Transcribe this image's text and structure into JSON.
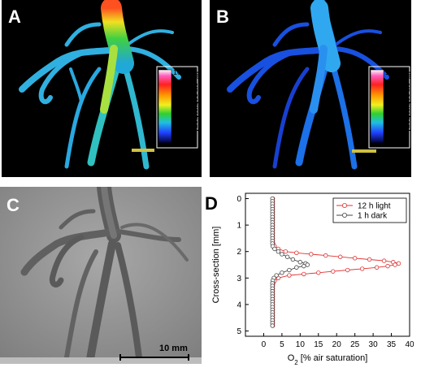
{
  "panels": {
    "a": {
      "label": "A",
      "colorbar": {
        "title": "[% air saturation]",
        "ticks": [
          "100",
          "75",
          "50",
          "25",
          "0"
        ]
      }
    },
    "b": {
      "label": "B",
      "colorbar": {
        "title": "[% air saturation]",
        "ticks": [
          "100",
          "75",
          "50",
          "25",
          "0"
        ]
      }
    },
    "c": {
      "label": "C",
      "scalebar_label": "10 mm"
    },
    "d": {
      "label": "D"
    }
  },
  "chart_data": {
    "type": "line",
    "xlabel_main": "O",
    "xlabel_sub": "2",
    "xlabel_rest": " [% air saturation]",
    "ylabel": "Cross-section [mm]",
    "xlim": [
      -5,
      40
    ],
    "ylim": [
      5.2,
      -0.2
    ],
    "y_inverted": true,
    "xticks": [
      0,
      5,
      10,
      15,
      20,
      25,
      30,
      35,
      40
    ],
    "yticks": [
      0,
      1,
      2,
      3,
      4,
      5
    ],
    "legend_position": "top-right",
    "series": [
      {
        "name": "12 h light",
        "color": "#e03030",
        "marker": "open-circle",
        "points": [
          [
            2.5,
            0.0
          ],
          [
            2.5,
            0.1
          ],
          [
            2.5,
            0.2
          ],
          [
            2.5,
            0.3
          ],
          [
            2.5,
            0.4
          ],
          [
            2.5,
            0.5
          ],
          [
            2.5,
            0.6
          ],
          [
            2.5,
            0.7
          ],
          [
            2.5,
            0.8
          ],
          [
            2.5,
            0.9
          ],
          [
            2.5,
            1.0
          ],
          [
            2.5,
            1.1
          ],
          [
            2.5,
            1.2
          ],
          [
            2.5,
            1.3
          ],
          [
            2.5,
            1.4
          ],
          [
            2.5,
            1.5
          ],
          [
            2.5,
            1.6
          ],
          [
            2.6,
            1.7
          ],
          [
            3,
            1.8
          ],
          [
            4,
            1.9
          ],
          [
            6,
            2.0
          ],
          [
            9,
            2.05
          ],
          [
            13,
            2.1
          ],
          [
            17,
            2.15
          ],
          [
            21,
            2.2
          ],
          [
            25,
            2.25
          ],
          [
            29,
            2.3
          ],
          [
            33,
            2.35
          ],
          [
            35.5,
            2.4
          ],
          [
            37,
            2.45
          ],
          [
            36,
            2.5
          ],
          [
            34,
            2.55
          ],
          [
            31,
            2.6
          ],
          [
            27,
            2.65
          ],
          [
            23,
            2.7
          ],
          [
            19,
            2.75
          ],
          [
            15,
            2.8
          ],
          [
            11,
            2.85
          ],
          [
            7,
            2.9
          ],
          [
            4,
            3.0
          ],
          [
            3,
            3.1
          ],
          [
            2.6,
            3.2
          ],
          [
            2.5,
            3.3
          ],
          [
            2.5,
            3.4
          ],
          [
            2.5,
            3.5
          ],
          [
            2.5,
            3.6
          ],
          [
            2.5,
            3.7
          ],
          [
            2.5,
            3.8
          ],
          [
            2.5,
            3.9
          ],
          [
            2.5,
            4.0
          ],
          [
            2.5,
            4.1
          ],
          [
            2.5,
            4.2
          ],
          [
            2.5,
            4.3
          ],
          [
            2.5,
            4.4
          ],
          [
            2.5,
            4.5
          ],
          [
            2.5,
            4.6
          ],
          [
            2.5,
            4.7
          ],
          [
            2.5,
            4.8
          ]
        ]
      },
      {
        "name": "1 h dark",
        "color": "#444444",
        "marker": "open-circle",
        "points": [
          [
            2.4,
            0.0
          ],
          [
            2.4,
            0.1
          ],
          [
            2.4,
            0.2
          ],
          [
            2.4,
            0.3
          ],
          [
            2.4,
            0.4
          ],
          [
            2.4,
            0.5
          ],
          [
            2.4,
            0.6
          ],
          [
            2.4,
            0.7
          ],
          [
            2.4,
            0.8
          ],
          [
            2.4,
            0.9
          ],
          [
            2.4,
            1.0
          ],
          [
            2.4,
            1.1
          ],
          [
            2.4,
            1.2
          ],
          [
            2.4,
            1.3
          ],
          [
            2.4,
            1.4
          ],
          [
            2.4,
            1.5
          ],
          [
            2.4,
            1.6
          ],
          [
            2.4,
            1.7
          ],
          [
            2.5,
            1.8
          ],
          [
            3,
            1.9
          ],
          [
            4,
            2.0
          ],
          [
            5,
            2.1
          ],
          [
            6.5,
            2.2
          ],
          [
            8,
            2.3
          ],
          [
            10,
            2.4
          ],
          [
            11.5,
            2.45
          ],
          [
            12,
            2.5
          ],
          [
            11,
            2.55
          ],
          [
            9,
            2.6
          ],
          [
            7,
            2.7
          ],
          [
            5,
            2.8
          ],
          [
            3.5,
            2.9
          ],
          [
            2.8,
            3.0
          ],
          [
            2.5,
            3.1
          ],
          [
            2.4,
            3.2
          ],
          [
            2.4,
            3.3
          ],
          [
            2.4,
            3.4
          ],
          [
            2.4,
            3.5
          ],
          [
            2.4,
            3.6
          ],
          [
            2.4,
            3.7
          ],
          [
            2.4,
            3.8
          ],
          [
            2.4,
            3.9
          ],
          [
            2.4,
            4.0
          ],
          [
            2.4,
            4.1
          ],
          [
            2.4,
            4.2
          ],
          [
            2.4,
            4.3
          ],
          [
            2.4,
            4.4
          ],
          [
            2.4,
            4.5
          ],
          [
            2.4,
            4.6
          ],
          [
            2.4,
            4.7
          ],
          [
            2.4,
            4.8
          ]
        ]
      }
    ]
  }
}
